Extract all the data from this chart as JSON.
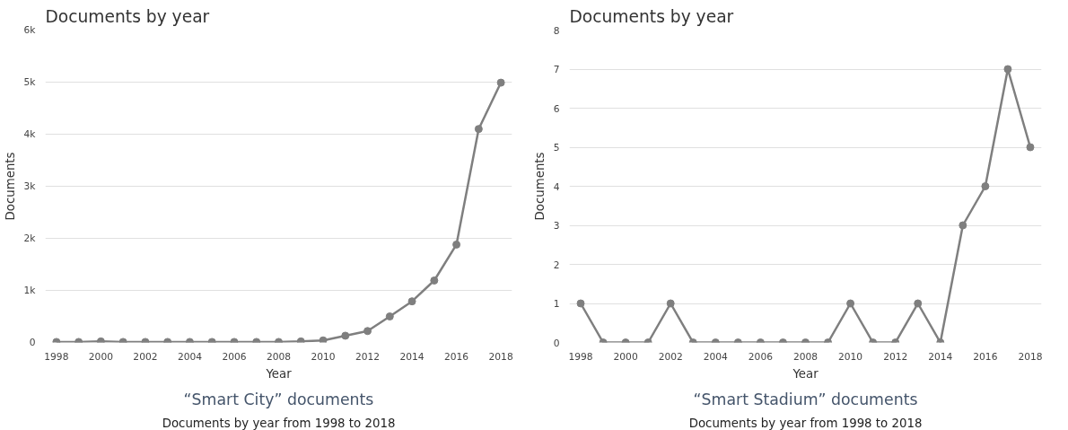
{
  "chart_data": [
    {
      "type": "line",
      "title": "Documents by year",
      "xlabel": "Year",
      "ylabel": "Documents",
      "annotations": [
        "“Smart City” documents",
        "Documents by year from 1998 to 2018"
      ],
      "x": [
        1998,
        1999,
        2000,
        2001,
        2002,
        2003,
        2004,
        2005,
        2006,
        2007,
        2008,
        2009,
        2010,
        2011,
        2012,
        2013,
        2014,
        2015,
        2016,
        2017,
        2018
      ],
      "series": [
        {
          "color": "#7f7f7f",
          "values": [
            10,
            10,
            20,
            10,
            10,
            10,
            10,
            10,
            10,
            10,
            10,
            20,
            40,
            130,
            220,
            500,
            790,
            1190,
            1880,
            4100,
            4990
          ]
        }
      ],
      "xlim": [
        1997.5,
        2018.5
      ],
      "xticks": [
        1998,
        2000,
        2002,
        2004,
        2006,
        2008,
        2010,
        2012,
        2014,
        2016,
        2018
      ],
      "ylim": [
        0,
        6000
      ],
      "yticks": [
        0,
        {
          "value": 1000,
          "label": "1k"
        },
        {
          "value": 2000,
          "label": "2k"
        },
        {
          "value": 3000,
          "label": "3k"
        },
        {
          "value": 4000,
          "label": "4k"
        },
        {
          "value": 5000,
          "label": "5k"
        },
        {
          "value": 6000,
          "label": "6k"
        }
      ],
      "grid": "y",
      "marker": "circle",
      "line_style": "solid"
    },
    {
      "type": "line",
      "title": "Documents by year",
      "xlabel": "Year",
      "ylabel": "Documents",
      "annotations": [
        "“Smart Stadium” documents",
        "Documents by year from 1998 to 2018"
      ],
      "x": [
        1998,
        1999,
        2000,
        2001,
        2002,
        2003,
        2004,
        2005,
        2006,
        2007,
        2008,
        2009,
        2010,
        2011,
        2012,
        2013,
        2014,
        2015,
        2016,
        2017,
        2018
      ],
      "series": [
        {
          "color": "#7f7f7f",
          "values": [
            1,
            0,
            0,
            0,
            1,
            0,
            0,
            0,
            0,
            0,
            0,
            0,
            1,
            0,
            0,
            1,
            0,
            3,
            4,
            7,
            5
          ]
        }
      ],
      "xlim": [
        1997.5,
        2018.5
      ],
      "xticks": [
        1998,
        2000,
        2002,
        2004,
        2006,
        2008,
        2010,
        2012,
        2014,
        2016,
        2018
      ],
      "ylim": [
        0,
        8
      ],
      "yticks": [
        0,
        1,
        2,
        3,
        4,
        5,
        6,
        7,
        8
      ],
      "grid": "y",
      "marker": "circle",
      "line_style": "solid"
    }
  ]
}
